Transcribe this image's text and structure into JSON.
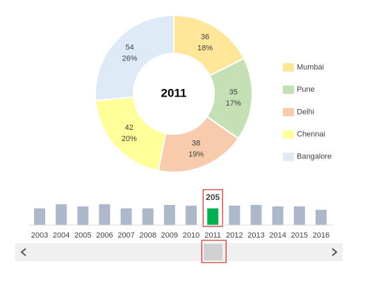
{
  "chart_data": [
    {
      "type": "donut",
      "title": "2011",
      "categories": [
        "Mumbai",
        "Pune",
        "Delhi",
        "Chennai",
        "Bangalore"
      ],
      "values": [
        36,
        35,
        38,
        42,
        54
      ],
      "percent_labels": [
        "18%",
        "17%",
        "19%",
        "20%",
        "26%"
      ],
      "colors": [
        "#ffe699",
        "#c5e0b4",
        "#f8cbad",
        "#ffff99",
        "#deebf7"
      ],
      "legend": "right"
    },
    {
      "type": "bar",
      "categories": [
        "2003",
        "2004",
        "2005",
        "2006",
        "2007",
        "2008",
        "2009",
        "2010",
        "2011",
        "2012",
        "2013",
        "2014",
        "2015",
        "2016"
      ],
      "values": [
        205,
        256,
        230,
        256,
        205,
        205,
        248,
        239,
        205,
        239,
        248,
        230,
        230,
        188
      ],
      "ylim": [
        0,
        260
      ],
      "color": "#adb9ca",
      "highlight_color": "#00b050",
      "selected": 8
    }
  ]
}
